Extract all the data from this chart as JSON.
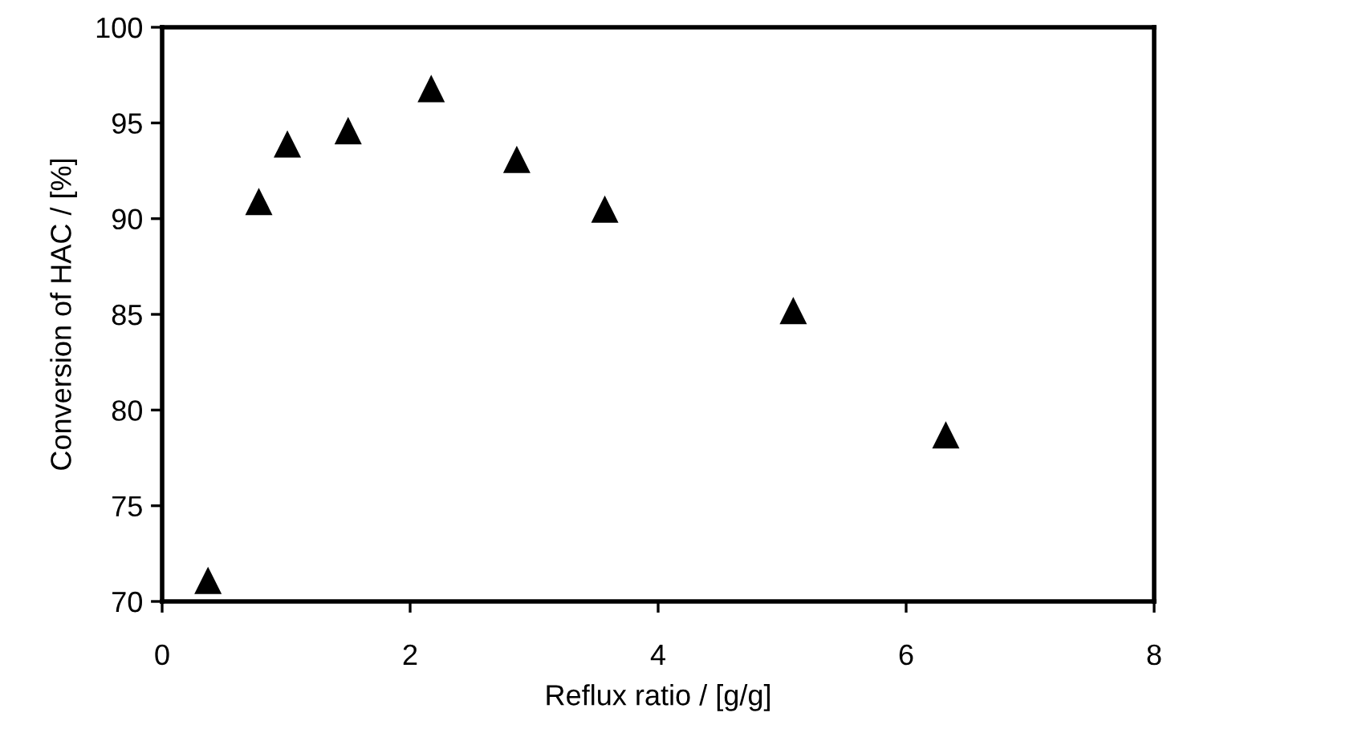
{
  "chart_data": {
    "type": "scatter",
    "xlabel": "Reflux ratio / [g/g]",
    "ylabel": "Conversion of HAC / [%]",
    "series": [
      {
        "color": "#000000",
        "x": [
          0.37,
          0.78,
          1.01,
          1.5,
          2.17,
          2.86,
          3.57,
          5.09,
          6.32
        ],
        "values": [
          71.1,
          90.9,
          93.9,
          94.6,
          96.8,
          93.1,
          90.5,
          85.2,
          78.7
        ]
      }
    ],
    "marker": "triangle",
    "xlim": [
      0,
      8
    ],
    "xticks": [
      0,
      2,
      4,
      6,
      8
    ],
    "ylim": [
      70,
      100
    ],
    "yticks": [
      70,
      75,
      80,
      85,
      90,
      95,
      100
    ],
    "grid": false
  }
}
